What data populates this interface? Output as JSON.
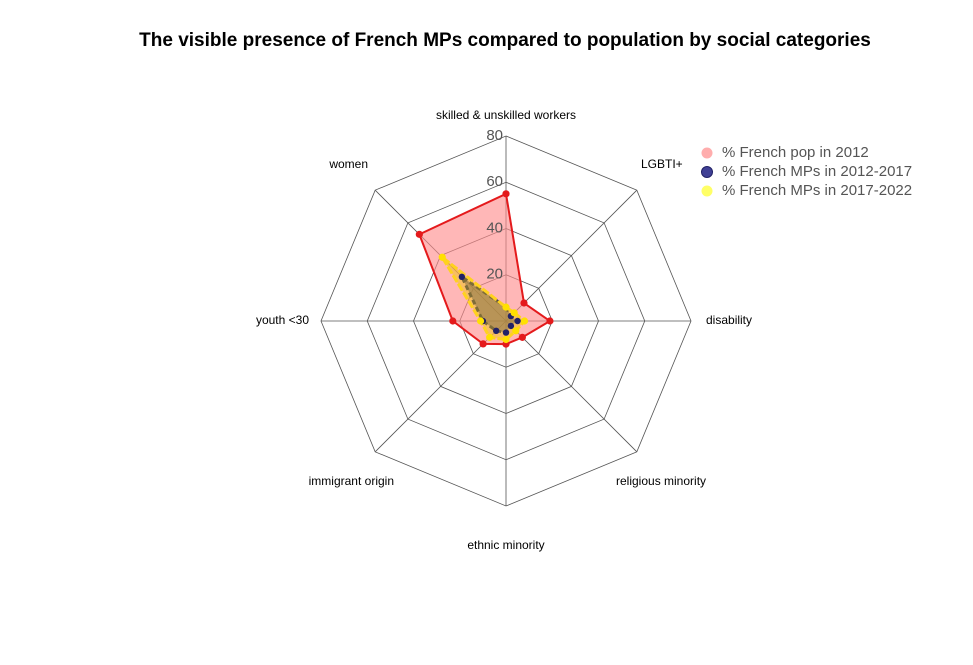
{
  "chart_data": {
    "type": "radar",
    "title": "The visible presence of French MPs compared to population by social categories",
    "axes": [
      "skilled & unskilled workers",
      "LGBTI+",
      "disability",
      "religious minority",
      "ethnic minority",
      "immigrant origin",
      "youth <30",
      "women"
    ],
    "rlim": [
      0,
      80
    ],
    "ticks": [
      "80",
      "60",
      "40",
      "20"
    ],
    "tick_values": [
      80,
      60,
      40,
      20
    ],
    "grid": true,
    "legend_position": "top-right",
    "series": [
      {
        "name": "% French pop in 2012",
        "color": "#e41a1c",
        "fill": "#ff8a8a",
        "fill_opacity": 0.62,
        "values": [
          55,
          11,
          19,
          10,
          10,
          14,
          23,
          53
        ]
      },
      {
        "name": "% French MPs in 2012-2017",
        "color": "#222266",
        "fill": "#2b2b8a",
        "fill_opacity": 0.55,
        "values": [
          6,
          3,
          5,
          3,
          5,
          6,
          10,
          27
        ]
      },
      {
        "name": "% French MPs in 2017-2022",
        "color": "#ffd21f",
        "fill": "#f0c800",
        "fill_opacity": 0.45,
        "values": [
          6,
          5,
          8,
          6,
          8,
          10,
          11,
          39
        ]
      }
    ]
  }
}
